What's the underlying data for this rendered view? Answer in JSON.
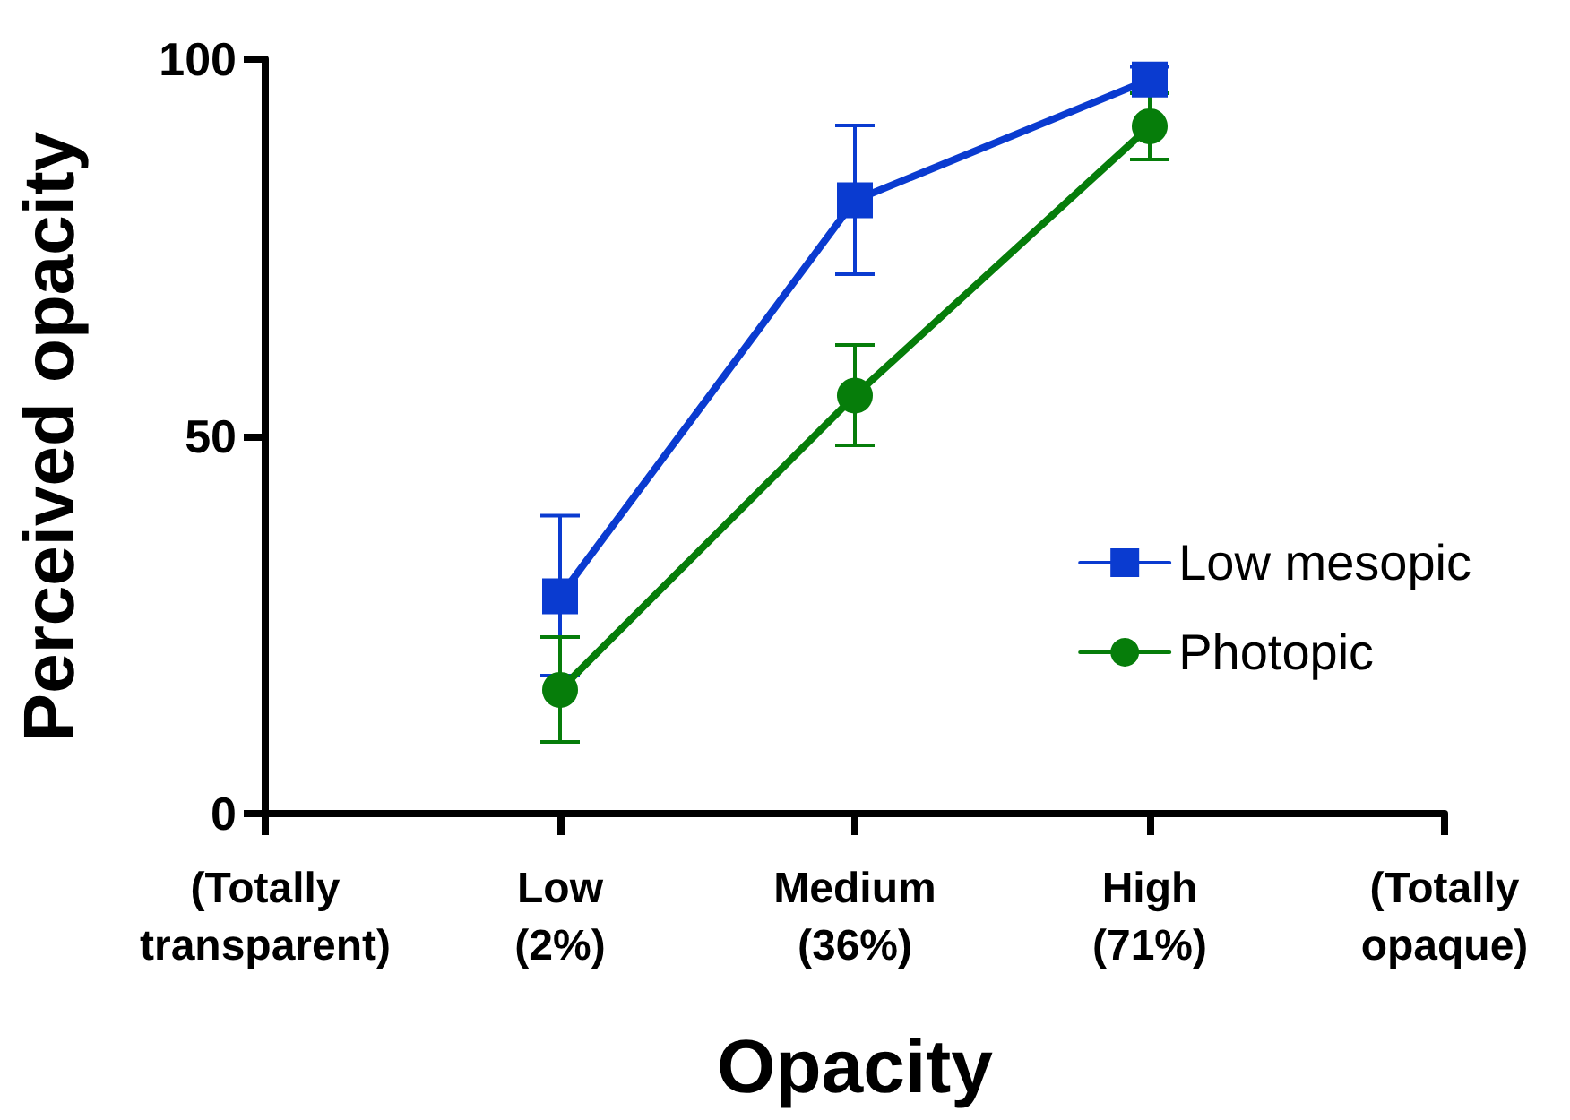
{
  "chart_data": {
    "type": "line",
    "xlabel": "Opacity",
    "ylabel": "Perceived opacity",
    "categories": [
      "(Totally\ntransparent)",
      "Low\n(2%)",
      "Medium\n(36%)",
      "High\n(71%)",
      "(Totally\nopaque)"
    ],
    "series": [
      {
        "name": "Low mesopic",
        "color": "#0a3bd0",
        "marker": "square",
        "values": [
          null,
          28.8,
          81.3,
          97.3,
          null
        ],
        "errors": [
          null,
          [
            18.3,
            39.5
          ],
          [
            71.5,
            91.2
          ],
          [
            95.5,
            99
          ],
          null
        ]
      },
      {
        "name": "Photopic",
        "color": "#067d0a",
        "marker": "circle",
        "values": [
          null,
          16.4,
          55.4,
          91.1,
          null
        ],
        "errors": [
          null,
          [
            9.5,
            23.4
          ],
          [
            48.8,
            62.1
          ],
          [
            86.7,
            95.5
          ],
          null
        ]
      }
    ],
    "ylim": [
      0,
      100
    ],
    "yticks": [
      0,
      50,
      100
    ],
    "grid": false,
    "legend": "right"
  }
}
